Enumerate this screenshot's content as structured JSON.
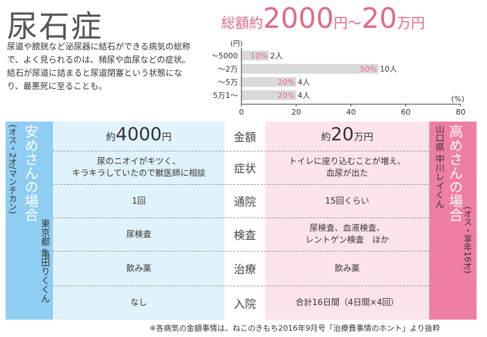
{
  "title": "尿石症",
  "description": "尿道や膀胱など泌尿器に結石ができる病気の総称で、よく見られるのは、頻尿や血尿などの症状。結石が尿道に詰まると尿道閉塞という状態になり、最悪死に至ることも。",
  "total": {
    "prefix": "総額約",
    "amount1": "2000",
    "unit1": "円",
    "tilde": "〜",
    "amount2": "20",
    "unit2": "万円"
  },
  "chart_data": {
    "type": "bar",
    "orientation": "horizontal",
    "categories": [
      "〜5000",
      "〜2万",
      "〜5万",
      "5万1〜"
    ],
    "values": [
      10,
      50,
      20,
      20
    ],
    "counts": [
      "2人",
      "10人",
      "4人",
      "4人"
    ],
    "value_labels": [
      "10%",
      "50%",
      "20%",
      "20%"
    ],
    "category_unit": "(円)",
    "value_unit": "(%)",
    "xlim": [
      0,
      80
    ],
    "xticks": [
      "0",
      "20",
      "40",
      "60",
      "80"
    ],
    "bar_color": "#d9d9d9",
    "label_color": "#e06a88"
  },
  "left_case": {
    "title": "安めさんの場合",
    "location": "東京都 亀田りくくん",
    "profile": "(オス・2才/マンチカン)"
  },
  "right_case": {
    "title": "高めさんの場合",
    "location": "山口県 中川レイくん",
    "profile": "(オス・享年16才)"
  },
  "rows": [
    {
      "label": "金額",
      "left": "",
      "right": ""
    },
    {
      "label": "症状",
      "left": "尿のニオイがキツく、\nキラキラしていたので獣医師に相談",
      "right": "トイレに座り込むことが増え、\n血尿が出た"
    },
    {
      "label": "通院",
      "left": "1回",
      "right": "15回くらい"
    },
    {
      "label": "検査",
      "left": "尿検査",
      "right": "尿検査、血液検査、\nレントゲン検査　ほか"
    },
    {
      "label": "治療",
      "left": "飲み薬",
      "right": "飲み薬"
    },
    {
      "label": "入院",
      "left": "なし",
      "right": "合計16日間（4日間×4回）"
    }
  ],
  "amount_left": {
    "prefix": "約",
    "amount": "4000",
    "unit": "円"
  },
  "amount_right": {
    "prefix": "約",
    "amount": "20",
    "unit": "万円"
  },
  "footer": "※各病気の金額事情は、ねこのきもち2016年9月号「治療費事情のホント」より抜粋",
  "colors": {
    "left_band": "#8fcdf2",
    "left_bg": "#e0f2fc",
    "right_band": "#ee7fa0",
    "right_bg": "#fde3ea",
    "accent": "#e06a88"
  }
}
